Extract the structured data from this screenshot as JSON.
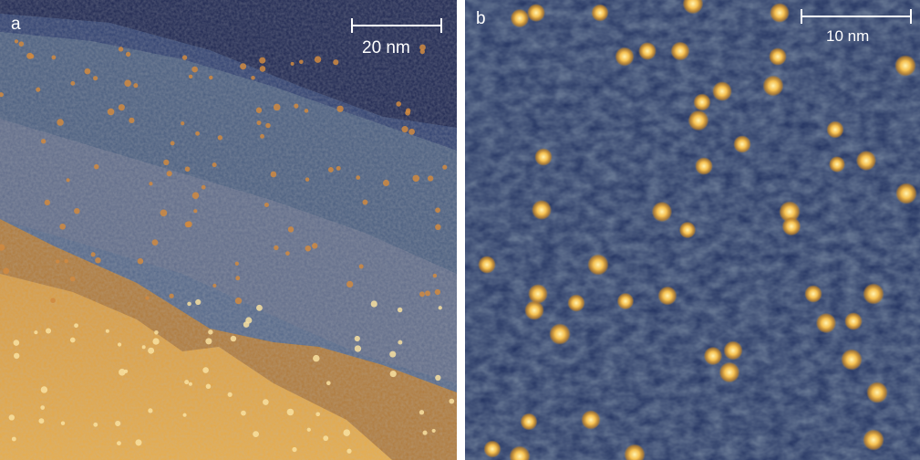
{
  "panels": [
    {
      "label": "a",
      "scale_bar": "20 nm"
    },
    {
      "label": "b",
      "scale_bar": "10 nm"
    }
  ],
  "colors": {
    "dark_terrace": "#1c2550",
    "mid_terrace": "#3d5578",
    "low_terrace": "#b07a3a",
    "bright_terrace": "#e3a640",
    "background_b": "#1f2f5e",
    "adatom": "#f5c050"
  }
}
